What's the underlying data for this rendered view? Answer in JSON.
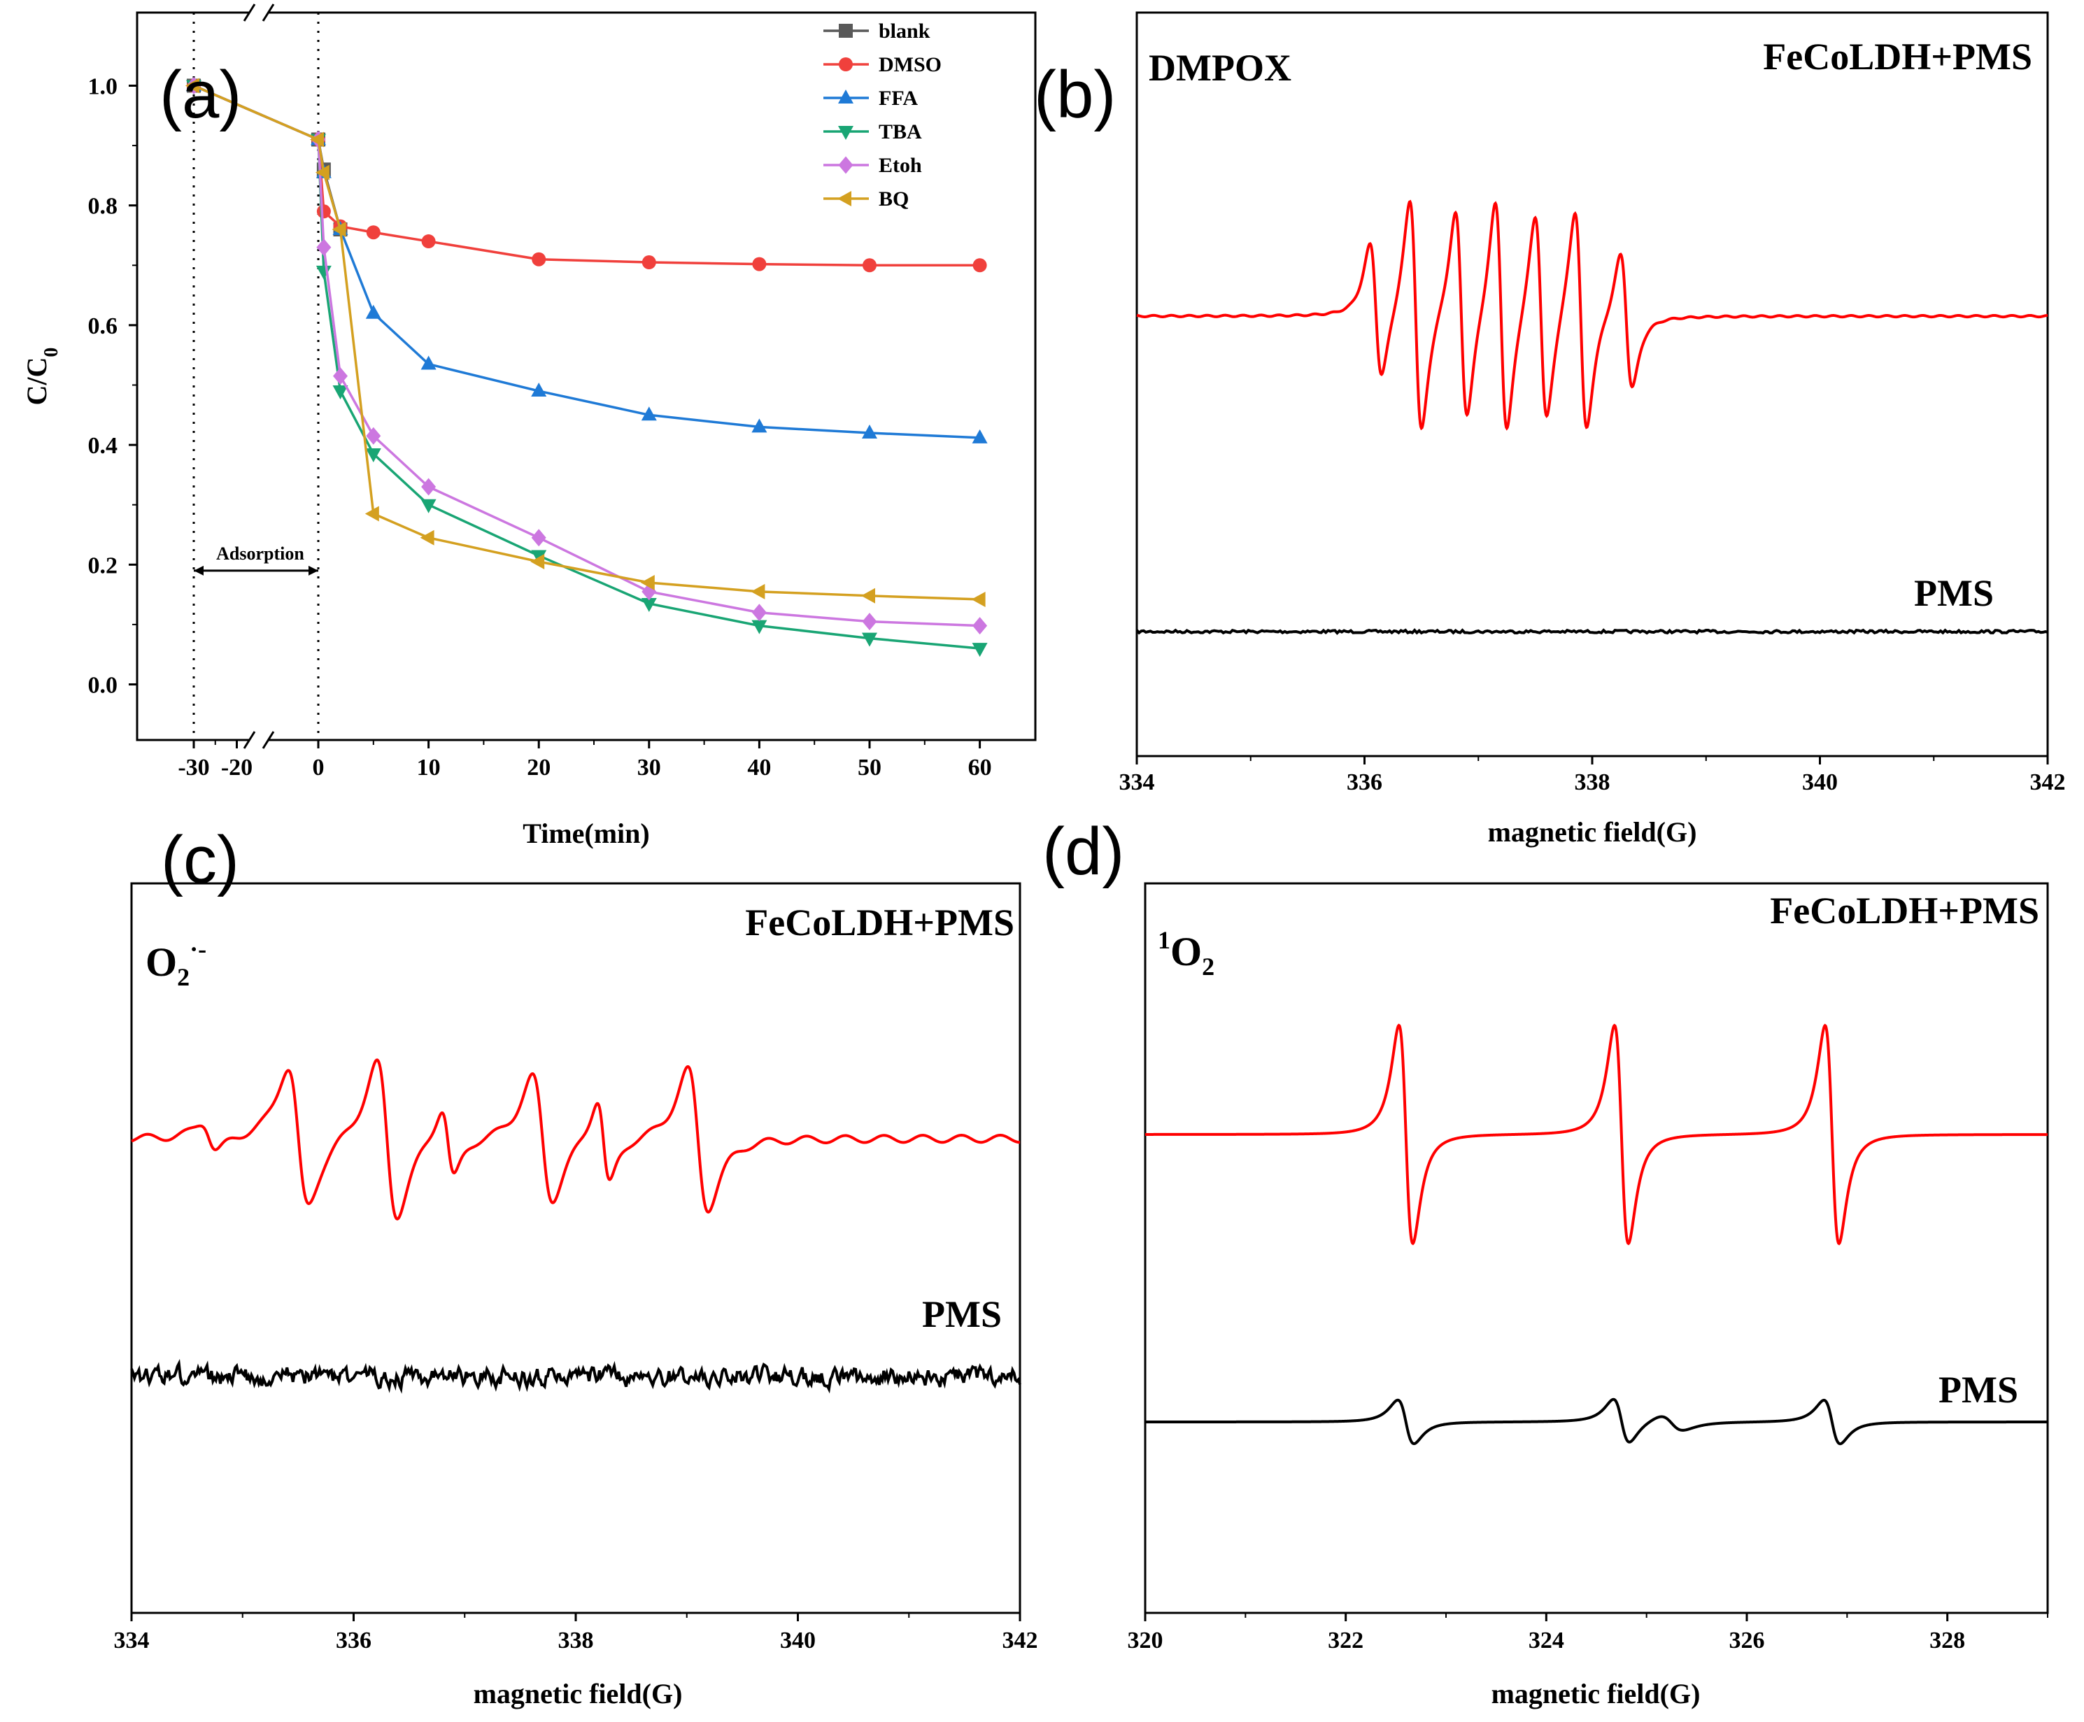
{
  "chart_data": [
    {
      "panel": "(a)",
      "type": "line",
      "title": "",
      "xlabel": "Time(min)",
      "ylabel": "C/C0",
      "ylabel_main": "C/C",
      "ylabel_sub": "0",
      "xlim": [
        -35,
        65
      ],
      "ylim": [
        -0.1,
        1.1
      ],
      "x_ticks": [
        -30,
        -20,
        0,
        10,
        20,
        30,
        40,
        50,
        60
      ],
      "x_tick_labels": [
        "-30",
        "-20",
        "0",
        "10",
        "20",
        "30",
        "40",
        "50",
        "60"
      ],
      "y_ticks": [
        0.0,
        0.2,
        0.4,
        0.6,
        0.8,
        1.0
      ],
      "y_tick_labels": [
        "0.0",
        "0.2",
        "0.4",
        "0.6",
        "0.8",
        "1.0"
      ],
      "annotation": "Adsorption",
      "x": [
        -30,
        0,
        0.5,
        2,
        5,
        10,
        20,
        30,
        40,
        50,
        60
      ],
      "series": [
        {
          "name": "blank",
          "color": "#595959",
          "marker": "square",
          "values": [
            1.0,
            0.91,
            0.86,
            0.76,
            null,
            null,
            null,
            null,
            null,
            null,
            null
          ]
        },
        {
          "name": "DMSO",
          "color": "#f0403c",
          "marker": "circle",
          "values": [
            1.0,
            0.91,
            0.79,
            0.765,
            0.755,
            0.74,
            0.71,
            0.705,
            0.702,
            0.7,
            0.7
          ]
        },
        {
          "name": "FFA",
          "color": "#1f7ad6",
          "marker": "triangle-up",
          "values": [
            1.0,
            0.91,
            0.855,
            0.76,
            0.62,
            0.535,
            0.49,
            0.45,
            0.43,
            0.42,
            0.412
          ]
        },
        {
          "name": "TBA",
          "color": "#19a574",
          "marker": "triangle-down",
          "values": [
            1.0,
            0.91,
            0.69,
            0.49,
            0.385,
            0.3,
            0.215,
            0.135,
            0.098,
            0.077,
            0.06
          ]
        },
        {
          "name": "Etoh",
          "color": "#cc77e0",
          "marker": "diamond",
          "values": [
            1.0,
            0.91,
            0.73,
            0.515,
            0.415,
            0.33,
            0.245,
            0.155,
            0.12,
            0.105,
            0.098
          ]
        },
        {
          "name": "BQ",
          "color": "#d4a020",
          "marker": "triangle-left",
          "values": [
            1.0,
            0.91,
            0.855,
            0.76,
            0.285,
            0.245,
            0.205,
            0.17,
            0.155,
            0.148,
            0.142
          ]
        }
      ]
    },
    {
      "panel": "(b)",
      "type": "line",
      "title": "DMPOX",
      "xlabel": "magnetic field(G)",
      "ylabel": "",
      "xlim": [
        334,
        342
      ],
      "x_ticks": [
        334,
        336,
        338,
        340,
        342
      ],
      "series": [
        {
          "name": "FeCoLDH+PMS",
          "color": "#ff0000",
          "peak_positions_G": [
            336.1,
            336.45,
            336.85,
            337.2,
            337.55,
            337.9,
            338.3
          ],
          "description": "seven-line DMPOX signal"
        },
        {
          "name": "PMS",
          "color": "#000000",
          "description": "flat baseline"
        }
      ]
    },
    {
      "panel": "(c)",
      "type": "line",
      "title": "O2·-",
      "xlabel": "magnetic field(G)",
      "ylabel": "",
      "xlim": [
        334,
        342
      ],
      "x_ticks": [
        334,
        336,
        338,
        340,
        342
      ],
      "series": [
        {
          "name": "FeCoLDH+PMS",
          "color": "#ff0000",
          "peak_positions_G": [
            334.7,
            335.5,
            336.3,
            336.85,
            337.7,
            338.25,
            339.1
          ],
          "description": "DMPO-OOH signal"
        },
        {
          "name": "PMS",
          "color": "#000000",
          "description": "noisy baseline"
        }
      ]
    },
    {
      "panel": "(d)",
      "type": "line",
      "title": "1O2",
      "xlabel": "magnetic field(G)",
      "ylabel": "",
      "xlim": [
        320,
        329
      ],
      "x_ticks": [
        320,
        322,
        324,
        326,
        328
      ],
      "series": [
        {
          "name": "FeCoLDH+PMS",
          "color": "#ff0000",
          "peak_positions_G": [
            322.6,
            324.75,
            326.85
          ],
          "description": "TEMP-1O2 triplet (1:1:1)"
        },
        {
          "name": "PMS",
          "color": "#000000",
          "peak_positions_G": [
            322.6,
            324.75,
            326.85
          ],
          "description": "weak triplet"
        }
      ]
    }
  ],
  "labels": {
    "a": {
      "panel": "(a)"
    },
    "b": {
      "panel": "(b)",
      "species": "DMPOX",
      "top": "FeCoLDH+PMS",
      "bottom": "PMS",
      "xlabel": "magnetic field(G)"
    },
    "c": {
      "panel": "(c)",
      "species_main": "O",
      "species_sub": "2",
      "species_sup": "·-",
      "top": "FeCoLDH+PMS",
      "bottom": "PMS",
      "xlabel": "magnetic field(G)"
    },
    "d": {
      "panel": "(d)",
      "species_sup": "1",
      "species_main": "O",
      "species_sub": "2",
      "top": "FeCoLDH+PMS",
      "bottom": "PMS",
      "xlabel": "magnetic field(G)"
    }
  }
}
